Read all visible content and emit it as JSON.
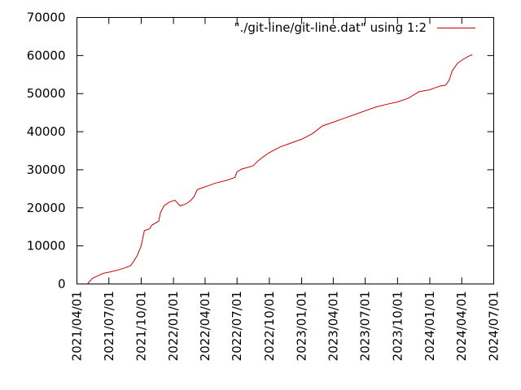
{
  "chart_data": {
    "type": "line",
    "title": "",
    "xlabel": "",
    "ylabel": "",
    "grid": false,
    "legend_position": "top-right",
    "series_color": "#cc0000",
    "ylim": [
      0,
      70000
    ],
    "xlim": [
      "2021/04/01",
      "2024/07/01"
    ],
    "yticks": [
      0,
      10000,
      20000,
      30000,
      40000,
      50000,
      60000,
      70000
    ],
    "ytick_labels": [
      "0",
      "10000",
      "20000",
      "30000",
      "40000",
      "50000",
      "60000",
      "70000"
    ],
    "xticks": [
      "2021/04/01",
      "2021/07/01",
      "2021/10/01",
      "2022/01/01",
      "2022/04/01",
      "2022/07/01",
      "2022/10/01",
      "2023/01/01",
      "2023/04/01",
      "2023/07/01",
      "2023/10/01",
      "2024/01/01",
      "2024/04/01",
      "2024/07/01"
    ],
    "series": [
      {
        "name": "\"./git-line/git-line.dat\" using 1:2",
        "x": [
          "2021/05/01",
          "2021/05/15",
          "2021/06/01",
          "2021/06/15",
          "2021/07/01",
          "2021/07/15",
          "2021/08/01",
          "2021/08/15",
          "2021/09/01",
          "2021/09/10",
          "2021/09/20",
          "2021/10/01",
          "2021/10/10",
          "2021/10/25",
          "2021/11/01",
          "2021/11/20",
          "2021/11/25",
          "2021/12/05",
          "2021/12/20",
          "2022/01/05",
          "2022/01/20",
          "2022/02/05",
          "2022/02/20",
          "2022/03/01",
          "2022/03/10",
          "2022/04/01",
          "2022/05/01",
          "2022/06/01",
          "2022/06/25",
          "2022/07/01",
          "2022/07/15",
          "2022/08/15",
          "2022/09/01",
          "2022/09/15",
          "2022/10/01",
          "2022/11/01",
          "2022/12/01",
          "2023/01/01",
          "2023/02/01",
          "2023/03/01",
          "2023/04/01",
          "2023/05/01",
          "2023/06/01",
          "2023/07/01",
          "2023/08/01",
          "2023/09/01",
          "2023/10/01",
          "2023/11/01",
          "2023/12/01",
          "2024/01/01",
          "2024/01/15",
          "2024/02/01",
          "2024/02/15",
          "2024/02/25",
          "2024/03/05",
          "2024/03/20",
          "2024/04/05",
          "2024/04/20",
          "2024/05/01"
        ],
        "values": [
          0,
          1500,
          2200,
          2800,
          3100,
          3400,
          3800,
          4200,
          4800,
          6000,
          7500,
          10000,
          14000,
          14500,
          15500,
          16500,
          18800,
          20500,
          21500,
          22000,
          20500,
          21000,
          22000,
          23000,
          24800,
          25500,
          26500,
          27200,
          28000,
          29500,
          30200,
          31000,
          32500,
          33500,
          34500,
          36000,
          37000,
          38000,
          39500,
          41500,
          42500,
          43500,
          44500,
          45500,
          46500,
          47200,
          47800,
          48800,
          50500,
          51000,
          51500,
          52000,
          52200,
          53500,
          56000,
          58000,
          59000,
          59800,
          60200
        ]
      }
    ]
  }
}
